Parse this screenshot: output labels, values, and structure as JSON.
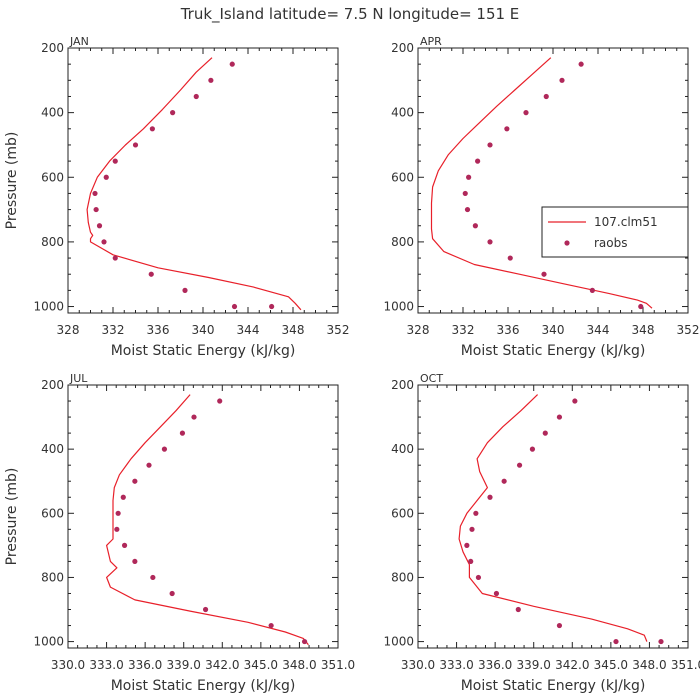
{
  "title": "Truk_Island  latitude= 7.5 N longitude= 151 E",
  "colors": {
    "model": "#e8202a",
    "obs": "#b0285a",
    "axis": "#222222",
    "text": "#333333"
  },
  "legend": {
    "panel": 1,
    "items": [
      {
        "label": "107.clm51",
        "kind": "line"
      },
      {
        "label": "raobs",
        "kind": "marker"
      }
    ]
  },
  "chart_data": [
    {
      "type": "line",
      "panel": "JAN",
      "xlabel": "Moist Static Energy (kJ/kg)",
      "ylabel": "Pressure (mb)",
      "xlim": [
        328,
        352
      ],
      "ylim": [
        1020,
        200
      ],
      "xticks": [
        328,
        332,
        336,
        340,
        344,
        348,
        352
      ],
      "xtick_labels": [
        "328",
        "332",
        "336",
        "340",
        "344",
        "348",
        "352"
      ],
      "yticks": [
        200,
        400,
        600,
        800,
        1000
      ],
      "ytick_labels": [
        "200",
        "400",
        "600",
        "800",
        "1000"
      ],
      "series": [
        {
          "name": "107.clm51",
          "kind": "line",
          "x": [
            340.8,
            339.4,
            338.0,
            336.4,
            334.7,
            333.1,
            331.7,
            330.6,
            330.0,
            329.7,
            329.8,
            330.0,
            330.2,
            330.0,
            330.0,
            332.0,
            336.0,
            340.5,
            344.5,
            347.6,
            348.2,
            348.7
          ],
          "y": [
            230,
            275,
            330,
            390,
            450,
            500,
            550,
            600,
            650,
            700,
            740,
            770,
            780,
            790,
            800,
            840,
            880,
            910,
            940,
            970,
            990,
            1010
          ]
        },
        {
          "name": "raobs",
          "kind": "marker",
          "x": [
            342.6,
            340.7,
            339.4,
            337.3,
            335.5,
            334.0,
            332.2,
            331.4,
            330.4,
            330.5,
            330.8,
            331.2,
            332.2,
            335.4,
            338.4,
            342.8,
            346.1
          ],
          "y": [
            250,
            300,
            350,
            400,
            450,
            500,
            550,
            600,
            650,
            700,
            750,
            800,
            850,
            900,
            950,
            1000,
            1000
          ]
        }
      ]
    },
    {
      "type": "line",
      "panel": "APR",
      "xlabel": "Moist Static Energy (kJ/kg)",
      "ylabel": "Pressure (mb)",
      "xlim": [
        328,
        352
      ],
      "ylim": [
        1020,
        200
      ],
      "xticks": [
        328,
        332,
        336,
        340,
        344,
        348,
        352
      ],
      "xtick_labels": [
        "328",
        "332",
        "336",
        "340",
        "344",
        "348",
        "352"
      ],
      "yticks": [
        200,
        400,
        600,
        800,
        1000
      ],
      "ytick_labels": [
        "200",
        "400",
        "600",
        "800",
        "1000"
      ],
      "series": [
        {
          "name": "107.clm51",
          "kind": "line",
          "x": [
            339.8,
            338.2,
            336.6,
            335.0,
            333.5,
            332.0,
            330.7,
            329.8,
            329.3,
            329.2,
            329.2,
            329.2,
            329.3,
            330.3,
            333.0,
            337.0,
            341.0,
            345.0,
            347.5,
            348.3,
            348.8
          ],
          "y": [
            230,
            280,
            330,
            380,
            430,
            480,
            530,
            580,
            630,
            680,
            720,
            760,
            790,
            830,
            870,
            900,
            930,
            960,
            980,
            990,
            1005
          ]
        },
        {
          "name": "raobs",
          "kind": "marker",
          "x": [
            342.5,
            340.8,
            339.4,
            337.6,
            335.9,
            334.4,
            333.3,
            332.5,
            332.2,
            332.4,
            333.1,
            334.4,
            336.2,
            339.2,
            343.5,
            347.8
          ],
          "y": [
            250,
            300,
            350,
            400,
            450,
            500,
            550,
            600,
            650,
            700,
            750,
            800,
            850,
            900,
            950,
            1000
          ]
        }
      ]
    },
    {
      "type": "line",
      "panel": "JUL",
      "xlabel": "Moist Static Energy (kJ/kg)",
      "ylabel": "Pressure (mb)",
      "xlim": [
        330.0,
        351.0
      ],
      "ylim": [
        1020,
        200
      ],
      "xticks": [
        330.0,
        333.0,
        336.0,
        339.0,
        342.0,
        345.0,
        348.0,
        351.0
      ],
      "xtick_labels": [
        "330.0",
        "333.0",
        "336.0",
        "339.0",
        "342.0",
        "345.0",
        "348.0",
        "351.0"
      ],
      "yticks": [
        200,
        400,
        600,
        800,
        1000
      ],
      "ytick_labels": [
        "200",
        "400",
        "600",
        "800",
        "1000"
      ],
      "series": [
        {
          "name": "107.clm51",
          "kind": "line",
          "x": [
            339.5,
            338.4,
            337.2,
            336.0,
            334.9,
            334.0,
            333.6,
            333.5,
            333.5,
            333.5,
            333.0,
            333.3,
            333.8,
            333.0,
            333.3,
            335.2,
            339.5,
            344.0,
            346.9,
            348.3,
            348.7
          ],
          "y": [
            230,
            280,
            330,
            380,
            430,
            480,
            520,
            560,
            620,
            680,
            700,
            750,
            770,
            800,
            830,
            870,
            905,
            940,
            970,
            990,
            1010
          ]
        },
        {
          "name": "raobs",
          "kind": "marker",
          "x": [
            341.8,
            339.8,
            338.9,
            337.5,
            336.3,
            335.2,
            334.3,
            333.9,
            333.8,
            334.4,
            335.2,
            336.6,
            338.1,
            340.7,
            345.8,
            348.4
          ],
          "y": [
            250,
            300,
            350,
            400,
            450,
            500,
            550,
            600,
            650,
            700,
            750,
            800,
            850,
            900,
            950,
            1000
          ]
        }
      ]
    },
    {
      "type": "line",
      "panel": "OCT",
      "xlabel": "Moist Static Energy (kJ/kg)",
      "ylabel": "Pressure (mb)",
      "xlim": [
        330.0,
        351.0
      ],
      "ylim": [
        1020,
        200
      ],
      "xticks": [
        330.0,
        333.0,
        336.0,
        339.0,
        342.0,
        345.0,
        348.0,
        351.0
      ],
      "xtick_labels": [
        "330.0",
        "333.0",
        "336.0",
        "339.0",
        "342.0",
        "345.0",
        "348.0",
        "351.0"
      ],
      "yticks": [
        200,
        400,
        600,
        800,
        1000
      ],
      "ytick_labels": [
        "200",
        "400",
        "600",
        "800",
        "1000"
      ],
      "series": [
        {
          "name": "107.clm51",
          "kind": "line",
          "x": [
            339.3,
            338.0,
            336.6,
            335.4,
            334.6,
            334.8,
            335.4,
            334.6,
            333.8,
            333.3,
            333.2,
            333.5,
            334.0,
            334.0,
            335.0,
            339.0,
            343.5,
            346.3,
            347.6,
            347.8
          ],
          "y": [
            230,
            280,
            330,
            380,
            430,
            470,
            520,
            560,
            600,
            640,
            680,
            720,
            760,
            800,
            850,
            890,
            930,
            960,
            980,
            1000
          ]
        },
        {
          "name": "raobs",
          "kind": "marker",
          "x": [
            342.2,
            341.0,
            339.9,
            338.9,
            337.9,
            336.7,
            335.6,
            334.5,
            334.2,
            333.8,
            334.1,
            334.7,
            336.1,
            337.8,
            341.0,
            345.4,
            348.9
          ],
          "y": [
            250,
            300,
            350,
            400,
            450,
            500,
            550,
            600,
            650,
            700,
            750,
            800,
            850,
            900,
            950,
            1000,
            1000
          ]
        }
      ]
    }
  ]
}
